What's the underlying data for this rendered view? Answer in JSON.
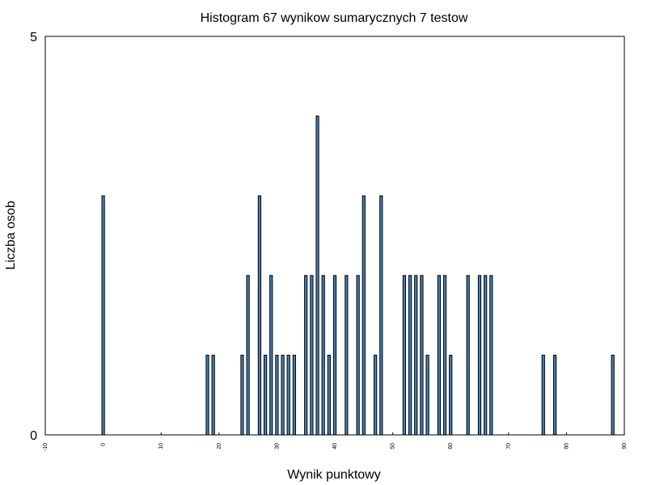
{
  "chart_data": {
    "type": "bar",
    "title": "Histogram 67 wynikow sumarycznych 7 testow",
    "x_label": "Wynik punktowy",
    "y_label": "Liczba osob",
    "x": [
      0,
      18,
      19,
      24,
      25,
      27,
      28,
      29,
      30,
      31,
      32,
      33,
      35,
      36,
      37,
      38,
      39,
      40,
      42,
      44,
      45,
      47,
      48,
      52,
      53,
      54,
      55,
      56,
      58,
      59,
      60,
      63,
      65,
      66,
      67,
      76,
      78,
      88
    ],
    "values": [
      3,
      1,
      1,
      1,
      2,
      3,
      1,
      2,
      1,
      1,
      1,
      1,
      2,
      2,
      4,
      2,
      1,
      2,
      2,
      2,
      3,
      1,
      3,
      2,
      2,
      2,
      2,
      1,
      2,
      2,
      1,
      2,
      2,
      2,
      2,
      1,
      1,
      1
    ],
    "color": "#4682b4",
    "xlim": [
      -10,
      90
    ],
    "xticks": [
      -10,
      0,
      10,
      20,
      30,
      40,
      50,
      60,
      70,
      80,
      90
    ],
    "ylim": [
      0,
      5
    ],
    "yticks": [
      0,
      5
    ],
    "grid": false
  }
}
